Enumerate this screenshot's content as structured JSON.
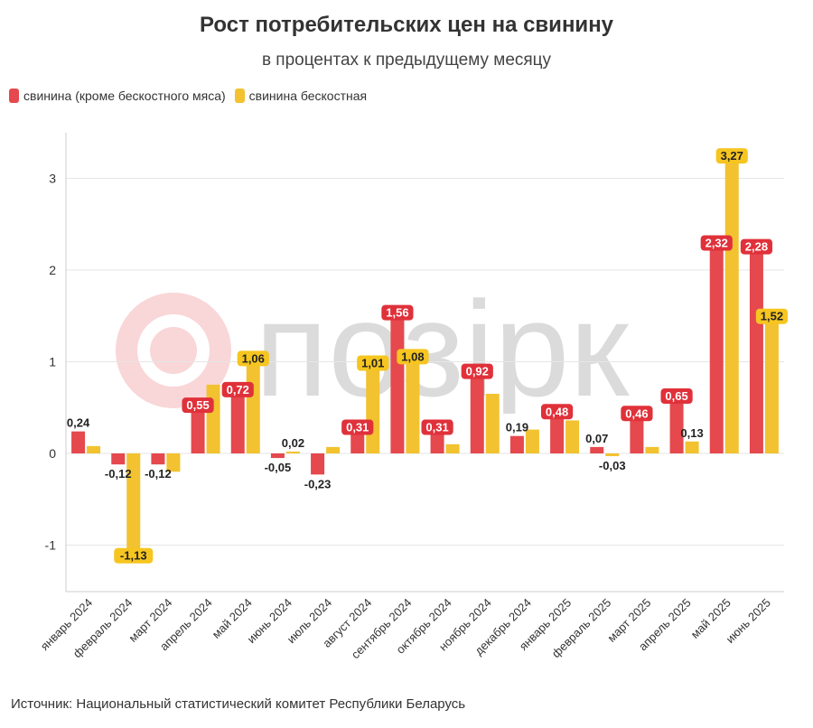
{
  "header": {
    "title": "Рост потребительских цен на свинину",
    "subtitle": "в процентах к предыдущему месяцу"
  },
  "source": "Источник: Национальный статистический комитет Республики Беларусь",
  "watermark": {
    "text": "позiрк",
    "icon": "logo-circle-icon"
  },
  "colors": {
    "red": "#e5484d",
    "yellow": "#f2c230",
    "axis": "#cccccc",
    "grid": "#e6e6e6"
  },
  "chart_data": {
    "type": "bar",
    "categories": [
      "январь 2024",
      "февраль 2024",
      "март 2024",
      "апрель 2024",
      "май 2024",
      "июнь 2024",
      "июль 2024",
      "август 2024",
      "сентябрь 2024",
      "октябрь 2024",
      "ноябрь 2024",
      "декабрь 2024",
      "январь 2025",
      "февраль 2025",
      "март 2025",
      "апрель 2025",
      "май 2025",
      "июнь 2025"
    ],
    "series": [
      {
        "name": "свинина (кроме бескостного мяса)",
        "color": "#e5484d",
        "values": [
          0.24,
          -0.12,
          -0.12,
          0.55,
          0.72,
          -0.05,
          -0.23,
          0.31,
          1.56,
          0.31,
          0.92,
          0.19,
          0.48,
          0.07,
          0.46,
          0.65,
          2.32,
          2.28
        ],
        "labels": [
          "0,24",
          "-0,12",
          "-0,12",
          "0,55",
          "0,72",
          "-0,05",
          "-0,23",
          "0,31",
          "1,56",
          "0,31",
          "0,92",
          "0,19",
          "0,48",
          "0,07",
          "0,46",
          "0,65",
          "2,32",
          "2,28"
        ],
        "label_shown": [
          true,
          true,
          true,
          true,
          true,
          true,
          true,
          true,
          true,
          true,
          true,
          true,
          true,
          true,
          true,
          true,
          true,
          true
        ],
        "label_badge": [
          false,
          false,
          false,
          true,
          true,
          false,
          false,
          true,
          true,
          true,
          true,
          false,
          true,
          false,
          true,
          true,
          true,
          true
        ]
      },
      {
        "name": "свинина бескостная",
        "color": "#f2c230",
        "values": [
          0.08,
          -1.13,
          -0.2,
          0.75,
          1.06,
          0.02,
          0.07,
          1.01,
          1.08,
          0.1,
          0.65,
          0.26,
          0.36,
          -0.03,
          0.07,
          0.13,
          3.27,
          1.52
        ],
        "labels": [
          "",
          "-1,13",
          "",
          "",
          "1,06",
          "0,02",
          "",
          "1,01",
          "1,08",
          "",
          "",
          "",
          "",
          "-0,03",
          "",
          "0,13",
          "3,27",
          "1,52"
        ],
        "label_shown": [
          false,
          true,
          false,
          false,
          true,
          true,
          false,
          true,
          true,
          false,
          false,
          false,
          false,
          true,
          false,
          true,
          true,
          true
        ],
        "label_badge": [
          false,
          true,
          false,
          false,
          true,
          false,
          false,
          true,
          true,
          false,
          false,
          false,
          false,
          false,
          false,
          false,
          true,
          true
        ]
      }
    ],
    "ylim": [
      -1.5,
      3.5
    ],
    "yticks": [
      -1,
      0,
      1,
      2,
      3
    ],
    "ytick_labels": [
      "-1",
      "0",
      "1",
      "2",
      "3"
    ],
    "grid": true,
    "legend_position": "top-left"
  }
}
